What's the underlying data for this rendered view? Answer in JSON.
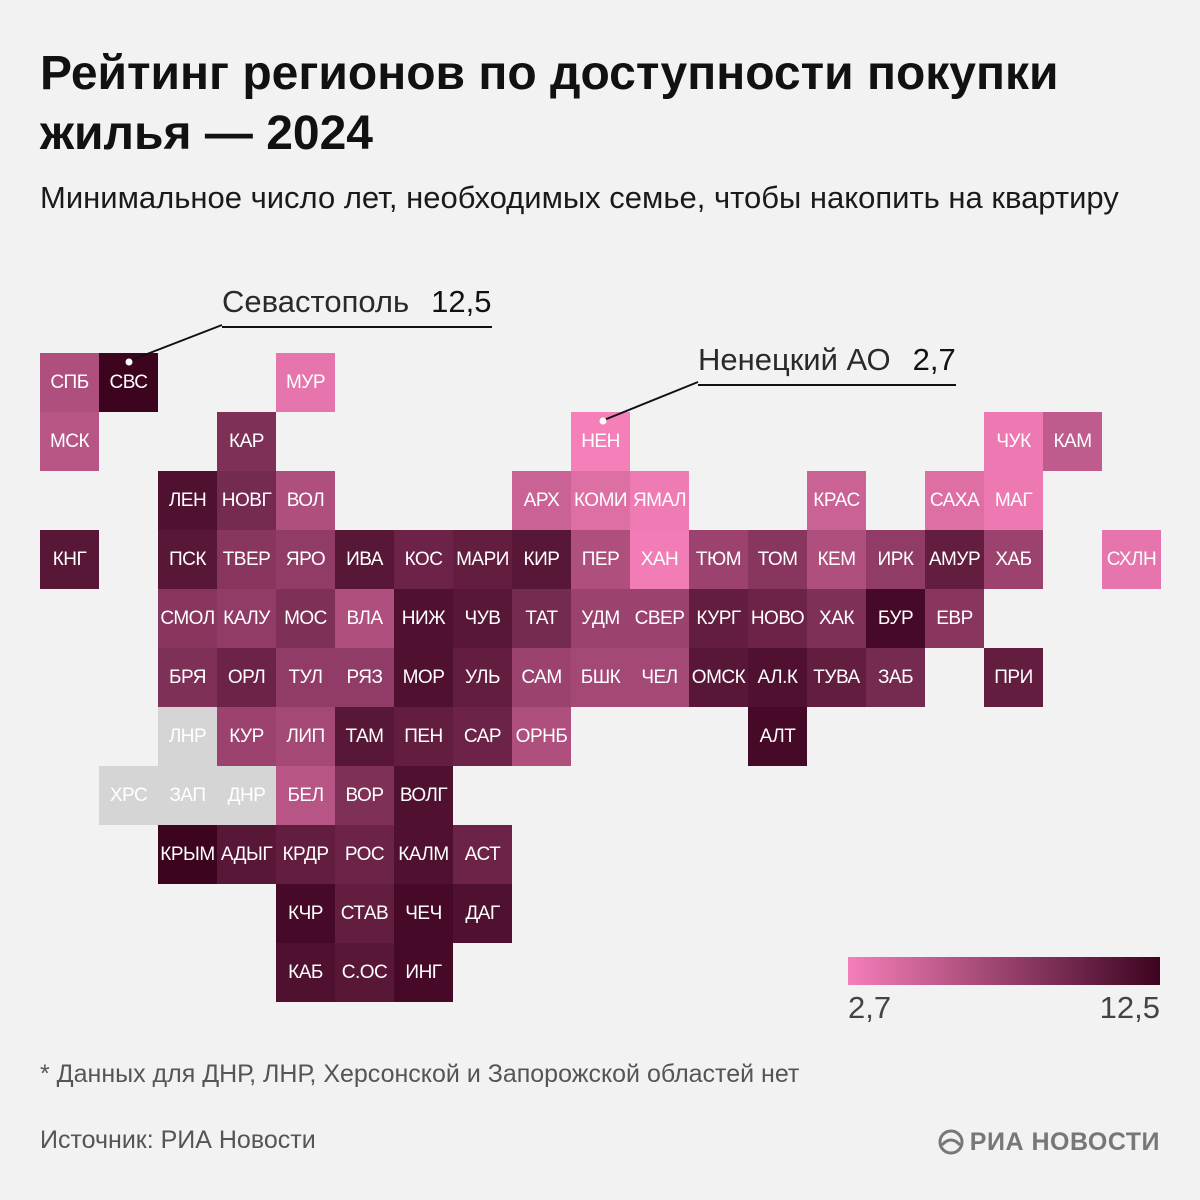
{
  "title": "Рейтинг регионов по доступности покупки жилья — 2024",
  "subtitle": "Минимальное число лет, необходимых семье, чтобы накопить на квартиру",
  "callouts": {
    "sevastopol": {
      "name": "Севастополь",
      "value": "12,5"
    },
    "nenets": {
      "name": "Ненецкий АО",
      "value": "2,7"
    }
  },
  "legend": {
    "min_label": "2,7",
    "max_label": "12,5",
    "color_low": "#f57fb9",
    "color_high": "#3d0420",
    "no_data_color": "#d5d5d5"
  },
  "footnote": "* Данных для ДНР, ЛНР, Херсонской и Запорожской областей нет",
  "source": "Источник: РИА Новости",
  "logo": "РИА НОВОСТИ",
  "chart_data": {
    "type": "heatmap",
    "value_range": [
      2.7,
      12.5
    ],
    "regions": [
      {
        "code": "СПБ",
        "row": 0,
        "col": 0,
        "value": 6.5
      },
      {
        "code": "СВС",
        "row": 0,
        "col": 1,
        "value": 12.5
      },
      {
        "code": "МУР",
        "row": 0,
        "col": 4,
        "value": 3.5
      },
      {
        "code": "МСК",
        "row": 1,
        "col": 0,
        "value": 6.0
      },
      {
        "code": "КАР",
        "row": 1,
        "col": 3,
        "value": 9.0
      },
      {
        "code": "НЕН",
        "row": 1,
        "col": 9,
        "value": 2.7
      },
      {
        "code": "ЧУК",
        "row": 1,
        "col": 16,
        "value": 3.2
      },
      {
        "code": "КАМ",
        "row": 1,
        "col": 17,
        "value": 5.5
      },
      {
        "code": "ЛЕН",
        "row": 2,
        "col": 2,
        "value": 11.5
      },
      {
        "code": "НОВГ",
        "row": 2,
        "col": 3,
        "value": 9.5
      },
      {
        "code": "ВОЛ",
        "row": 2,
        "col": 4,
        "value": 6.5
      },
      {
        "code": "АРХ",
        "row": 2,
        "col": 8,
        "value": 5.0
      },
      {
        "code": "КОМИ",
        "row": 2,
        "col": 9,
        "value": 4.0
      },
      {
        "code": "ЯМАЛ",
        "row": 2,
        "col": 10,
        "value": 3.0
      },
      {
        "code": "КРАС",
        "row": 2,
        "col": 13,
        "value": 5.0
      },
      {
        "code": "САХА",
        "row": 2,
        "col": 15,
        "value": 4.0
      },
      {
        "code": "МАГ",
        "row": 2,
        "col": 16,
        "value": 3.2
      },
      {
        "code": "КНГ",
        "row": 3,
        "col": 0,
        "value": 11.0
      },
      {
        "code": "ПСК",
        "row": 3,
        "col": 2,
        "value": 11.0
      },
      {
        "code": "ТВЕР",
        "row": 3,
        "col": 3,
        "value": 8.5
      },
      {
        "code": "ЯРО",
        "row": 3,
        "col": 4,
        "value": 8.0
      },
      {
        "code": "ИВА",
        "row": 3,
        "col": 5,
        "value": 11.0
      },
      {
        "code": "КОС",
        "row": 3,
        "col": 6,
        "value": 10.0
      },
      {
        "code": "МАРИ",
        "row": 3,
        "col": 7,
        "value": 10.5
      },
      {
        "code": "КИР",
        "row": 3,
        "col": 8,
        "value": 11.0
      },
      {
        "code": "ПЕР",
        "row": 3,
        "col": 9,
        "value": 6.5
      },
      {
        "code": "ХАН",
        "row": 3,
        "col": 10,
        "value": 2.9
      },
      {
        "code": "ТЮМ",
        "row": 3,
        "col": 11,
        "value": 7.5
      },
      {
        "code": "ТОМ",
        "row": 3,
        "col": 12,
        "value": 8.5
      },
      {
        "code": "КЕМ",
        "row": 3,
        "col": 13,
        "value": 6.5
      },
      {
        "code": "ИРК",
        "row": 3,
        "col": 14,
        "value": 8.0
      },
      {
        "code": "АМУР",
        "row": 3,
        "col": 15,
        "value": 10.5
      },
      {
        "code": "ХАБ",
        "row": 3,
        "col": 16,
        "value": 7.5
      },
      {
        "code": "СХЛН",
        "row": 3,
        "col": 18,
        "value": 3.5
      },
      {
        "code": "СМОЛ",
        "row": 4,
        "col": 2,
        "value": 8.5
      },
      {
        "code": "КАЛУ",
        "row": 4,
        "col": 3,
        "value": 8.0
      },
      {
        "code": "МОС",
        "row": 4,
        "col": 4,
        "value": 9.0
      },
      {
        "code": "ВЛА",
        "row": 4,
        "col": 5,
        "value": 6.5
      },
      {
        "code": "НИЖ",
        "row": 4,
        "col": 6,
        "value": 11.5
      },
      {
        "code": "ЧУВ",
        "row": 4,
        "col": 7,
        "value": 11.0
      },
      {
        "code": "ТАТ",
        "row": 4,
        "col": 8,
        "value": 9.5
      },
      {
        "code": "УДМ",
        "row": 4,
        "col": 9,
        "value": 7.5
      },
      {
        "code": "СВЕР",
        "row": 4,
        "col": 10,
        "value": 7.5
      },
      {
        "code": "КУРГ",
        "row": 4,
        "col": 11,
        "value": 10.5
      },
      {
        "code": "НОВО",
        "row": 4,
        "col": 12,
        "value": 10.0
      },
      {
        "code": "ХАК",
        "row": 4,
        "col": 13,
        "value": 9.0
      },
      {
        "code": "БУР",
        "row": 4,
        "col": 14,
        "value": 12.0
      },
      {
        "code": "ЕВР",
        "row": 4,
        "col": 15,
        "value": 8.5
      },
      {
        "code": "БРЯ",
        "row": 5,
        "col": 2,
        "value": 9.0
      },
      {
        "code": "ОРЛ",
        "row": 5,
        "col": 3,
        "value": 10.0
      },
      {
        "code": "ТУЛ",
        "row": 5,
        "col": 4,
        "value": 8.0
      },
      {
        "code": "РЯЗ",
        "row": 5,
        "col": 5,
        "value": 8.0
      },
      {
        "code": "МОР",
        "row": 5,
        "col": 6,
        "value": 11.5
      },
      {
        "code": "УЛЬ",
        "row": 5,
        "col": 7,
        "value": 10.5
      },
      {
        "code": "САМ",
        "row": 5,
        "col": 8,
        "value": 7.5
      },
      {
        "code": "БШК",
        "row": 5,
        "col": 9,
        "value": 7.0
      },
      {
        "code": "ЧЕЛ",
        "row": 5,
        "col": 10,
        "value": 7.0
      },
      {
        "code": "ОМСК",
        "row": 5,
        "col": 11,
        "value": 11.0
      },
      {
        "code": "АЛ.К",
        "row": 5,
        "col": 12,
        "value": 11.5
      },
      {
        "code": "ТУВА",
        "row": 5,
        "col": 13,
        "value": 10.5
      },
      {
        "code": "ЗАБ",
        "row": 5,
        "col": 14,
        "value": 9.5
      },
      {
        "code": "ПРИ",
        "row": 5,
        "col": 16,
        "value": 10.5
      },
      {
        "code": "ЛНР",
        "row": 6,
        "col": 2,
        "value": null
      },
      {
        "code": "КУР",
        "row": 6,
        "col": 3,
        "value": 7.5
      },
      {
        "code": "ЛИП",
        "row": 6,
        "col": 4,
        "value": 7.0
      },
      {
        "code": "ТАМ",
        "row": 6,
        "col": 5,
        "value": 11.0
      },
      {
        "code": "ПЕН",
        "row": 6,
        "col": 6,
        "value": 10.5
      },
      {
        "code": "САР",
        "row": 6,
        "col": 7,
        "value": 10.0
      },
      {
        "code": "ОРНБ",
        "row": 6,
        "col": 8,
        "value": 6.5
      },
      {
        "code": "АЛТ",
        "row": 6,
        "col": 12,
        "value": 12.0
      },
      {
        "code": "ХРС",
        "row": 7,
        "col": 1,
        "value": null
      },
      {
        "code": "ЗАП",
        "row": 7,
        "col": 2,
        "value": null
      },
      {
        "code": "ДНР",
        "row": 7,
        "col": 3,
        "value": null
      },
      {
        "code": "БЕЛ",
        "row": 7,
        "col": 4,
        "value": 6.0
      },
      {
        "code": "ВОР",
        "row": 7,
        "col": 5,
        "value": 9.0
      },
      {
        "code": "ВОЛГ",
        "row": 7,
        "col": 6,
        "value": 11.5
      },
      {
        "code": "КРЫМ",
        "row": 8,
        "col": 2,
        "value": 12.5
      },
      {
        "code": "АДЫГ",
        "row": 8,
        "col": 3,
        "value": 11.0
      },
      {
        "code": "КРДР",
        "row": 8,
        "col": 4,
        "value": 10.5
      },
      {
        "code": "РОС",
        "row": 8,
        "col": 5,
        "value": 10.0
      },
      {
        "code": "КАЛМ",
        "row": 8,
        "col": 6,
        "value": 11.5
      },
      {
        "code": "АСТ",
        "row": 8,
        "col": 7,
        "value": 10.0
      },
      {
        "code": "КЧР",
        "row": 9,
        "col": 4,
        "value": 12.0
      },
      {
        "code": "СТАВ",
        "row": 9,
        "col": 5,
        "value": 10.5
      },
      {
        "code": "ЧЕЧ",
        "row": 9,
        "col": 6,
        "value": 12.0
      },
      {
        "code": "ДАГ",
        "row": 9,
        "col": 7,
        "value": 11.5
      },
      {
        "code": "КАБ",
        "row": 10,
        "col": 4,
        "value": 11.5
      },
      {
        "code": "С.ОС",
        "row": 10,
        "col": 5,
        "value": 11.0
      },
      {
        "code": "ИНГ",
        "row": 10,
        "col": 6,
        "value": 12.0
      }
    ]
  }
}
